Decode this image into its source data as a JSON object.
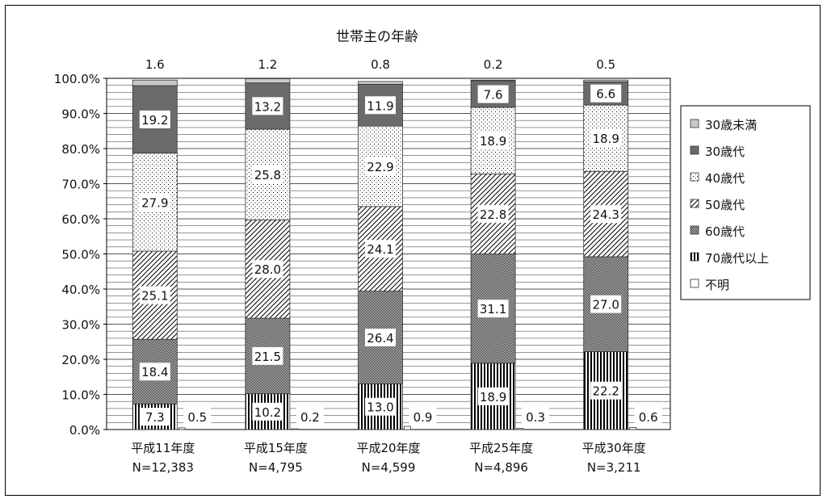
{
  "chart_data": {
    "type": "bar",
    "stacked": true,
    "title": "世帯主の年齢",
    "categories": [
      "平成11年度",
      "平成15年度",
      "平成20年度",
      "平成25年度",
      "平成30年度"
    ],
    "n_labels": [
      "N=12,383",
      "N=4,795",
      "N=4,599",
      "N=4,896",
      "N=3,211"
    ],
    "ylim": [
      0,
      100
    ],
    "yticks": [
      "0.0%",
      "10.0%",
      "20.0%",
      "30.0%",
      "40.0%",
      "50.0%",
      "60.0%",
      "70.0%",
      "80.0%",
      "90.0%",
      "100.0%"
    ],
    "grid": true,
    "legend_position": "right",
    "series": [
      {
        "name": "70歳代以上",
        "pattern": "vlines",
        "values": [
          7.3,
          10.2,
          13.0,
          18.9,
          22.2
        ],
        "labels": [
          "7.3",
          "10.2",
          "13.0",
          "18.9",
          "22.2"
        ]
      },
      {
        "name": "60歳代",
        "pattern": "crosshatch",
        "values": [
          18.4,
          21.5,
          26.4,
          31.1,
          27.0
        ],
        "labels": [
          "18.4",
          "21.5",
          "26.4",
          "31.1",
          "27.0"
        ]
      },
      {
        "name": "50歳代",
        "pattern": "diagonal",
        "values": [
          25.1,
          28.0,
          24.1,
          22.8,
          24.3
        ],
        "labels": [
          "25.1",
          "28.0",
          "24.1",
          "22.8",
          "24.3"
        ]
      },
      {
        "name": "40歳代",
        "pattern": "dots",
        "values": [
          27.9,
          25.8,
          22.9,
          18.9,
          18.9
        ],
        "labels": [
          "27.9",
          "25.8",
          "22.9",
          "18.9",
          "18.9"
        ]
      },
      {
        "name": "30歳代",
        "pattern": "darkgray",
        "values": [
          19.2,
          13.2,
          11.9,
          7.6,
          6.6
        ],
        "labels": [
          "19.2",
          "13.2",
          "11.9",
          "7.6",
          "6.6"
        ]
      },
      {
        "name": "30歳未満",
        "pattern": "lightgray",
        "values": [
          1.6,
          1.2,
          0.8,
          0.2,
          0.5
        ],
        "labels": [
          "1.6",
          "1.2",
          "0.8",
          "0.2",
          "0.5"
        ]
      }
    ],
    "unknown_series": {
      "name": "不明",
      "values": [
        0.5,
        0.2,
        0.9,
        0.3,
        0.6
      ],
      "labels": [
        "0.5",
        "0.2",
        "0.9",
        "0.3",
        "0.6"
      ]
    },
    "legend_order": [
      "30歳未満",
      "30歳代",
      "40歳代",
      "50歳代",
      "60歳代",
      "70歳代以上",
      "不明"
    ],
    "colors": {
      "dark": "#6b6b6b",
      "light": "#c8c8c8",
      "grid": "#555555"
    }
  }
}
